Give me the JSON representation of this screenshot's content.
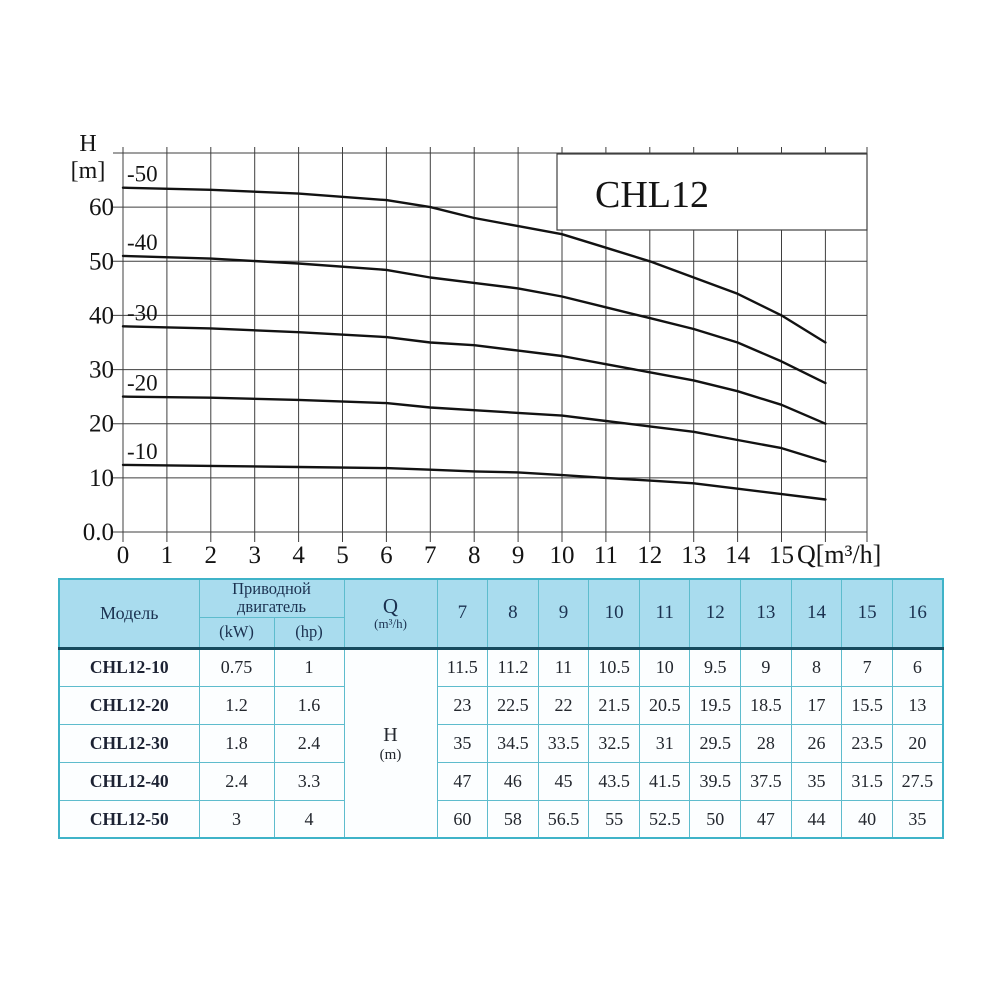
{
  "chart_data": {
    "type": "line",
    "title": "CHL12",
    "x_axis_title": "Q[m³/h]",
    "y_axis_title_line1": "H",
    "y_axis_title_line2": "[m]",
    "xlim": [
      0,
      16.9
    ],
    "ylim": [
      0,
      70
    ],
    "grid": true,
    "x_gridline_step": 1,
    "y_gridline_step": 10,
    "x_tick_labels": [
      "0",
      "1",
      "2",
      "3",
      "4",
      "5",
      "6",
      "7",
      "8",
      "9",
      "10",
      "11",
      "12",
      "13",
      "14",
      "15"
    ],
    "y_ticks": [
      {
        "value": 0,
        "label": "0.0"
      },
      {
        "value": 10,
        "label": "10"
      },
      {
        "value": 20,
        "label": "20"
      },
      {
        "value": 30,
        "label": "30"
      },
      {
        "value": 40,
        "label": "40"
      },
      {
        "value": 50,
        "label": "50"
      },
      {
        "value": 60,
        "label": "60"
      }
    ],
    "q": [
      0,
      2,
      4,
      6,
      7,
      8,
      9,
      10,
      11,
      12,
      13,
      14,
      15,
      16
    ],
    "series": [
      {
        "name": "-50",
        "h": [
          63.6,
          63.2,
          62.5,
          61.3,
          60,
          58,
          56.5,
          55,
          52.5,
          50,
          47,
          44,
          40,
          35
        ]
      },
      {
        "name": "-40",
        "h": [
          51,
          50.5,
          49.6,
          48.4,
          47,
          46,
          45,
          43.5,
          41.5,
          39.5,
          37.5,
          35,
          31.5,
          27.5
        ]
      },
      {
        "name": "-30",
        "h": [
          38,
          37.6,
          36.9,
          36,
          35,
          34.5,
          33.5,
          32.5,
          31,
          29.5,
          28,
          26,
          23.5,
          20
        ]
      },
      {
        "name": "-20",
        "h": [
          25,
          24.8,
          24.4,
          23.8,
          23,
          22.5,
          22,
          21.5,
          20.5,
          19.5,
          18.5,
          17,
          15.5,
          13
        ]
      },
      {
        "name": "-10",
        "h": [
          12.4,
          12.2,
          12.0,
          11.8,
          11.5,
          11.2,
          11,
          10.5,
          10,
          9.5,
          9,
          8,
          7,
          6
        ]
      }
    ]
  },
  "table": {
    "header": {
      "model": "Модель",
      "motor": "Приводной двигатель",
      "kw": "(kW)",
      "hp": "(hp)",
      "q_label": "Q",
      "q_unit": "(m³/h)",
      "flow_cols": [
        "7",
        "8",
        "9",
        "10",
        "11",
        "12",
        "13",
        "14",
        "15",
        "16"
      ],
      "h_label": "H",
      "h_unit": "(m)"
    },
    "rows": [
      {
        "model": "CHL12-10",
        "kw": "0.75",
        "hp": "1",
        "values": [
          "11.5",
          "11.2",
          "11",
          "10.5",
          "10",
          "9.5",
          "9",
          "8",
          "7",
          "6"
        ]
      },
      {
        "model": "CHL12-20",
        "kw": "1.2",
        "hp": "1.6",
        "values": [
          "23",
          "22.5",
          "22",
          "21.5",
          "20.5",
          "19.5",
          "18.5",
          "17",
          "15.5",
          "13"
        ]
      },
      {
        "model": "CHL12-30",
        "kw": "1.8",
        "hp": "2.4",
        "values": [
          "35",
          "34.5",
          "33.5",
          "32.5",
          "31",
          "29.5",
          "28",
          "26",
          "23.5",
          "20"
        ]
      },
      {
        "model": "CHL12-40",
        "kw": "2.4",
        "hp": "3.3",
        "values": [
          "47",
          "46",
          "45",
          "43.5",
          "41.5",
          "39.5",
          "37.5",
          "35",
          "31.5",
          "27.5"
        ]
      },
      {
        "model": "CHL12-50",
        "kw": "3",
        "hp": "4",
        "values": [
          "60",
          "58",
          "56.5",
          "55",
          "52.5",
          "50",
          "47",
          "44",
          "40",
          "35"
        ]
      }
    ],
    "colors": {
      "header_bg": "#a9dcee",
      "border_teal": "#3fb3c8",
      "header_underline": "#174b5e",
      "header_text": "#1b3150"
    }
  }
}
